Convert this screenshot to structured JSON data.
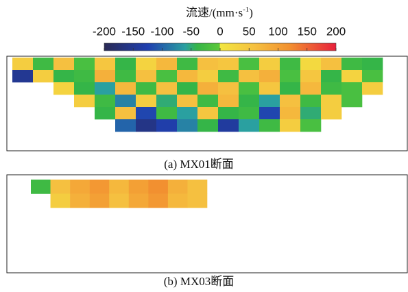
{
  "chart_data": {
    "type": "heatmap",
    "colorbar": {
      "title": [
        "流速/(mm·s",
        "-1",
        ")"
      ],
      "lim": [
        -200,
        200
      ],
      "ticks": [
        -200,
        -150,
        -100,
        -50,
        0,
        50,
        100,
        150,
        200
      ],
      "colorscale": [
        [
          -200,
          "#2a2a55"
        ],
        [
          -125,
          "#1f3fb0"
        ],
        [
          -60,
          "#2aa0a0"
        ],
        [
          -40,
          "#35b548"
        ],
        [
          -1,
          "#5cc83a"
        ],
        [
          0,
          "#f2e640"
        ],
        [
          60,
          "#f5c040"
        ],
        [
          120,
          "#f29030"
        ],
        [
          200,
          "#e8203c"
        ]
      ]
    },
    "panels": [
      {
        "caption": "(a) MX01断面",
        "values": [
          [
            40,
            -30,
            60,
            -20,
            50,
            -40,
            30,
            70,
            -30,
            60,
            50,
            -20,
            40,
            -30,
            20,
            60,
            -30,
            -40
          ],
          [
            -150,
            40,
            -40,
            -30,
            80,
            -30,
            60,
            -20,
            70,
            40,
            -30,
            60,
            80,
            -20,
            50,
            -40,
            30,
            -20
          ],
          [
            null,
            null,
            30,
            -40,
            -60,
            70,
            -30,
            60,
            -40,
            80,
            60,
            -20,
            50,
            -40,
            70,
            -30,
            -20,
            40
          ],
          [
            null,
            null,
            null,
            40,
            -30,
            -80,
            40,
            -50,
            60,
            -30,
            70,
            -40,
            -60,
            60,
            -30,
            40,
            -20,
            null
          ],
          [
            null,
            null,
            null,
            null,
            -40,
            60,
            -120,
            -30,
            -60,
            50,
            -40,
            -30,
            -120,
            70,
            -50,
            40,
            null,
            null
          ],
          [
            null,
            null,
            null,
            null,
            null,
            -100,
            -160,
            -130,
            -80,
            -40,
            -140,
            -60,
            -30,
            40,
            -20,
            null,
            null,
            null
          ]
        ]
      },
      {
        "caption": "(b) MX03断面",
        "values": [
          [
            -30,
            60,
            90,
            110,
            70,
            100,
            120,
            80,
            60
          ],
          [
            null,
            40,
            80,
            100,
            60,
            90,
            110,
            70,
            60
          ]
        ]
      }
    ]
  }
}
